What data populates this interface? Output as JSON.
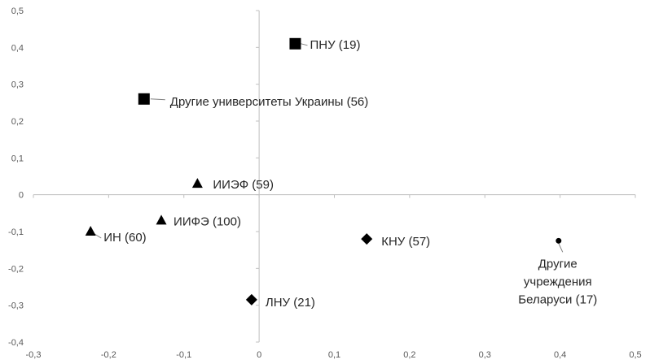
{
  "chart_data": {
    "type": "scatter",
    "xlim": [
      -0.3,
      0.5
    ],
    "ylim": [
      -0.4,
      0.5
    ],
    "x_ticks": [
      "-0,3",
      "-0,2",
      "-0,1",
      "0",
      "0,1",
      "0,2",
      "0,3",
      "0,4",
      "0,5"
    ],
    "y_ticks": [
      "0,5",
      "0,4",
      "0,3",
      "0,2",
      "0,1",
      "0",
      "-0,1",
      "-0,2",
      "-0,3",
      "-0,4"
    ],
    "grid": false,
    "points": [
      {
        "x": 0.048,
        "y": 0.41,
        "marker": "square",
        "label": [
          "ПНУ (19)"
        ]
      },
      {
        "x": -0.153,
        "y": 0.26,
        "marker": "square",
        "label": [
          "Другие университеты Украины (56)"
        ]
      },
      {
        "x": -0.082,
        "y": 0.03,
        "marker": "triangle",
        "label": [
          "ИИЭФ (59)"
        ]
      },
      {
        "x": -0.13,
        "y": -0.07,
        "marker": "triangle",
        "label": [
          "ИИФЭ (100)"
        ]
      },
      {
        "x": -0.224,
        "y": -0.1,
        "marker": "triangle",
        "label": [
          "ИН (60)"
        ]
      },
      {
        "x": 0.143,
        "y": -0.12,
        "marker": "diamond",
        "label": [
          "КНУ (57)"
        ]
      },
      {
        "x": -0.01,
        "y": -0.285,
        "marker": "diamond",
        "label": [
          "ЛНУ (21)"
        ]
      },
      {
        "x": 0.398,
        "y": -0.125,
        "marker": "circle",
        "label": [
          "Другие",
          "учреждения",
          "Беларуси (17)"
        ]
      }
    ]
  }
}
